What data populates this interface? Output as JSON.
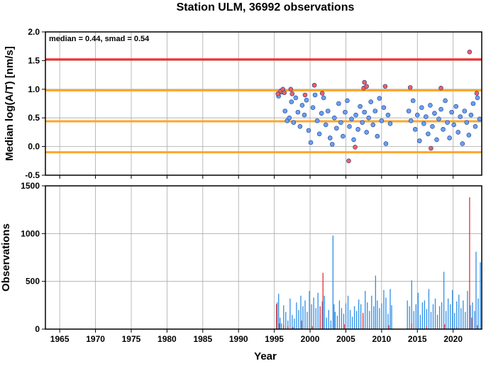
{
  "title": "Station ULM, 36992 observations",
  "chart_data": [
    {
      "type": "scatter",
      "ylabel": "Median log(A/T) [nm/s]",
      "annotation": "median = 0.44, smad = 0.54",
      "xlim": [
        1963,
        2024
      ],
      "ylim": [
        -0.5,
        2.0
      ],
      "yticks": [
        "-0.5",
        "0.0",
        "0.5",
        "1.0",
        "1.5",
        "2.0"
      ],
      "grid": true,
      "reference_lines": [
        {
          "y": 1.52,
          "color": "#ff2b2b"
        },
        {
          "y": 0.98,
          "color": "#ffa629"
        },
        {
          "y": 0.44,
          "color": "#22dd22",
          "x_start": 1995.3
        },
        {
          "y": 0.44,
          "color": "#ffa629"
        },
        {
          "y": -0.1,
          "color": "#ffa629"
        }
      ],
      "series": [
        {
          "color": "#6c9ff0",
          "points": [
            [
              1995.6,
              0.88
            ],
            [
              1996.0,
              0.95
            ],
            [
              1996.5,
              0.62
            ],
            [
              1996.8,
              0.45
            ],
            [
              1997.1,
              0.5
            ],
            [
              1997.4,
              0.78
            ],
            [
              1997.7,
              0.42
            ],
            [
              1998.0,
              0.85
            ],
            [
              1998.3,
              0.6
            ],
            [
              1998.6,
              0.35
            ],
            [
              1998.9,
              0.72
            ],
            [
              1999.2,
              0.55
            ],
            [
              1999.5,
              0.81
            ],
            [
              1999.8,
              0.28
            ],
            [
              2000.1,
              0.07
            ],
            [
              2000.4,
              0.68
            ],
            [
              2000.7,
              0.9
            ],
            [
              2001.0,
              0.45
            ],
            [
              2001.3,
              0.22
            ],
            [
              2001.6,
              0.58
            ],
            [
              2001.9,
              0.85
            ],
            [
              2002.2,
              0.38
            ],
            [
              2002.5,
              0.62
            ],
            [
              2002.8,
              0.15
            ],
            [
              2003.1,
              0.04
            ],
            [
              2003.4,
              0.5
            ],
            [
              2003.7,
              0.32
            ],
            [
              2004.0,
              0.75
            ],
            [
              2004.3,
              0.42
            ],
            [
              2004.6,
              0.18
            ],
            [
              2004.9,
              0.6
            ],
            [
              2005.2,
              0.8
            ],
            [
              2005.5,
              0.35
            ],
            [
              2005.8,
              0.48
            ],
            [
              2006.1,
              0.12
            ],
            [
              2006.4,
              0.55
            ],
            [
              2006.7,
              0.3
            ],
            [
              2007.0,
              0.7
            ],
            [
              2007.3,
              0.42
            ],
            [
              2007.6,
              0.6
            ],
            [
              2007.9,
              0.25
            ],
            [
              2008.2,
              0.5
            ],
            [
              2008.5,
              0.78
            ],
            [
              2008.8,
              0.38
            ],
            [
              2009.1,
              0.62
            ],
            [
              2009.4,
              0.18
            ],
            [
              2009.7,
              0.84
            ],
            [
              2010.0,
              0.45
            ],
            [
              2010.3,
              0.68
            ],
            [
              2010.6,
              0.05
            ],
            [
              2010.9,
              0.55
            ],
            [
              2011.2,
              0.4
            ],
            [
              2013.8,
              0.62
            ],
            [
              2014.1,
              0.45
            ],
            [
              2014.4,
              0.8
            ],
            [
              2014.7,
              0.3
            ],
            [
              2015.0,
              0.55
            ],
            [
              2015.3,
              0.1
            ],
            [
              2015.6,
              0.68
            ],
            [
              2015.9,
              0.4
            ],
            [
              2016.2,
              0.52
            ],
            [
              2016.5,
              0.22
            ],
            [
              2016.8,
              0.72
            ],
            [
              2017.1,
              0.35
            ],
            [
              2017.4,
              0.58
            ],
            [
              2017.7,
              0.12
            ],
            [
              2018.0,
              0.48
            ],
            [
              2018.3,
              0.65
            ],
            [
              2018.6,
              0.3
            ],
            [
              2018.9,
              0.8
            ],
            [
              2019.2,
              0.42
            ],
            [
              2019.5,
              0.15
            ],
            [
              2019.8,
              0.6
            ],
            [
              2020.1,
              0.38
            ],
            [
              2020.4,
              0.7
            ],
            [
              2020.7,
              0.25
            ],
            [
              2021.0,
              0.52
            ],
            [
              2021.3,
              0.05
            ],
            [
              2021.6,
              0.62
            ],
            [
              2021.9,
              0.42
            ],
            [
              2022.2,
              0.2
            ],
            [
              2022.5,
              0.55
            ],
            [
              2022.8,
              0.75
            ],
            [
              2023.1,
              0.35
            ],
            [
              2023.4,
              0.85
            ],
            [
              2023.7,
              0.48
            ]
          ]
        },
        {
          "color": "#f0605c",
          "points": [
            [
              1995.5,
              0.92
            ],
            [
              1995.9,
              0.97
            ],
            [
              1996.2,
              1.0
            ],
            [
              1996.4,
              0.94
            ],
            [
              1997.3,
              1.0
            ],
            [
              1997.5,
              0.92
            ],
            [
              1999.3,
              0.9
            ],
            [
              2000.6,
              1.07
            ],
            [
              2001.7,
              0.93
            ],
            [
              2005.4,
              -0.25
            ],
            [
              2006.3,
              -0.01
            ],
            [
              2007.5,
              1.02
            ],
            [
              2007.6,
              1.12
            ],
            [
              2007.9,
              1.05
            ],
            [
              2010.5,
              1.05
            ],
            [
              2014.0,
              1.03
            ],
            [
              2016.9,
              -0.03
            ],
            [
              2018.3,
              1.02
            ],
            [
              2022.3,
              1.65
            ],
            [
              2023.3,
              0.93
            ]
          ]
        }
      ]
    },
    {
      "type": "bar",
      "xlabel": "Year",
      "ylabel": "Observations",
      "xlim": [
        1963,
        2024
      ],
      "ylim": [
        0,
        1500
      ],
      "xticks": [
        "1965",
        "1970",
        "1975",
        "1980",
        "1985",
        "1990",
        "1995",
        "2000",
        "2005",
        "2010",
        "2015",
        "2020"
      ],
      "yticks": [
        "0",
        "500",
        "1000",
        "1500"
      ],
      "grid": true,
      "series": [
        {
          "color": "#2f8fe8",
          "x": [
            1995.4,
            1995.6,
            1995.8,
            1996.0,
            1996.3,
            1996.6,
            1996.9,
            1997.2,
            1997.5,
            1997.8,
            1998.1,
            1998.4,
            1998.7,
            1999.0,
            1999.3,
            1999.6,
            1999.9,
            2000.2,
            2000.5,
            2000.8,
            2001.1,
            2001.4,
            2001.7,
            2002.0,
            2002.3,
            2002.6,
            2002.9,
            2003.2,
            2003.35,
            2003.5,
            2003.8,
            2004.1,
            2004.4,
            2004.7,
            2005.0,
            2005.3,
            2005.6,
            2005.9,
            2006.2,
            2006.5,
            2006.8,
            2007.1,
            2007.4,
            2007.7,
            2008.0,
            2008.3,
            2008.6,
            2008.9,
            2009.15,
            2009.4,
            2009.7,
            2010.0,
            2010.3,
            2010.6,
            2010.9,
            2011.2,
            2011.4,
            2013.6,
            2013.9,
            2014.2,
            2014.5,
            2014.8,
            2015.1,
            2015.4,
            2015.7,
            2016.0,
            2016.3,
            2016.6,
            2016.9,
            2017.2,
            2017.5,
            2017.8,
            2018.1,
            2018.4,
            2018.7,
            2019.0,
            2019.3,
            2019.6,
            2019.9,
            2020.2,
            2020.5,
            2020.8,
            2021.1,
            2021.4,
            2021.7,
            2022.0,
            2022.4,
            2022.7,
            2023.0,
            2023.2,
            2023.5,
            2023.8
          ],
          "values": [
            280,
            370,
            120,
            60,
            250,
            180,
            90,
            320,
            150,
            110,
            280,
            200,
            350,
            240,
            300,
            180,
            400,
            260,
            330,
            220,
            380,
            150,
            290,
            350,
            120,
            200,
            90,
            980,
            260,
            180,
            140,
            300,
            220,
            160,
            270,
            350,
            200,
            130,
            240,
            190,
            310,
            260,
            150,
            400,
            280,
            190,
            350,
            240,
            560,
            300,
            220,
            270,
            410,
            330,
            160,
            420,
            250,
            300,
            240,
            510,
            190,
            260,
            380,
            150,
            280,
            300,
            210,
            420,
            180,
            260,
            320,
            150,
            240,
            280,
            600,
            190,
            320,
            260,
            410,
            170,
            290,
            360,
            220,
            300,
            180,
            400,
            250,
            280,
            190,
            810,
            320,
            700
          ]
        },
        {
          "color": "#e83030",
          "x": [
            1995.3,
            1995.7,
            1996.3,
            1996.9,
            1997.6,
            1998.8,
            2000.3,
            2001.4,
            2001.8,
            2004.8,
            2007.4,
            2011.0,
            2014.2,
            2016.3,
            2018.8,
            2020.5,
            2022.3,
            2022.6,
            2023.4
          ],
          "values": [
            260,
            60,
            40,
            30,
            20,
            90,
            30,
            240,
            590,
            50,
            170,
            40,
            60,
            30,
            50,
            20,
            1380,
            120,
            40
          ]
        }
      ]
    }
  ]
}
